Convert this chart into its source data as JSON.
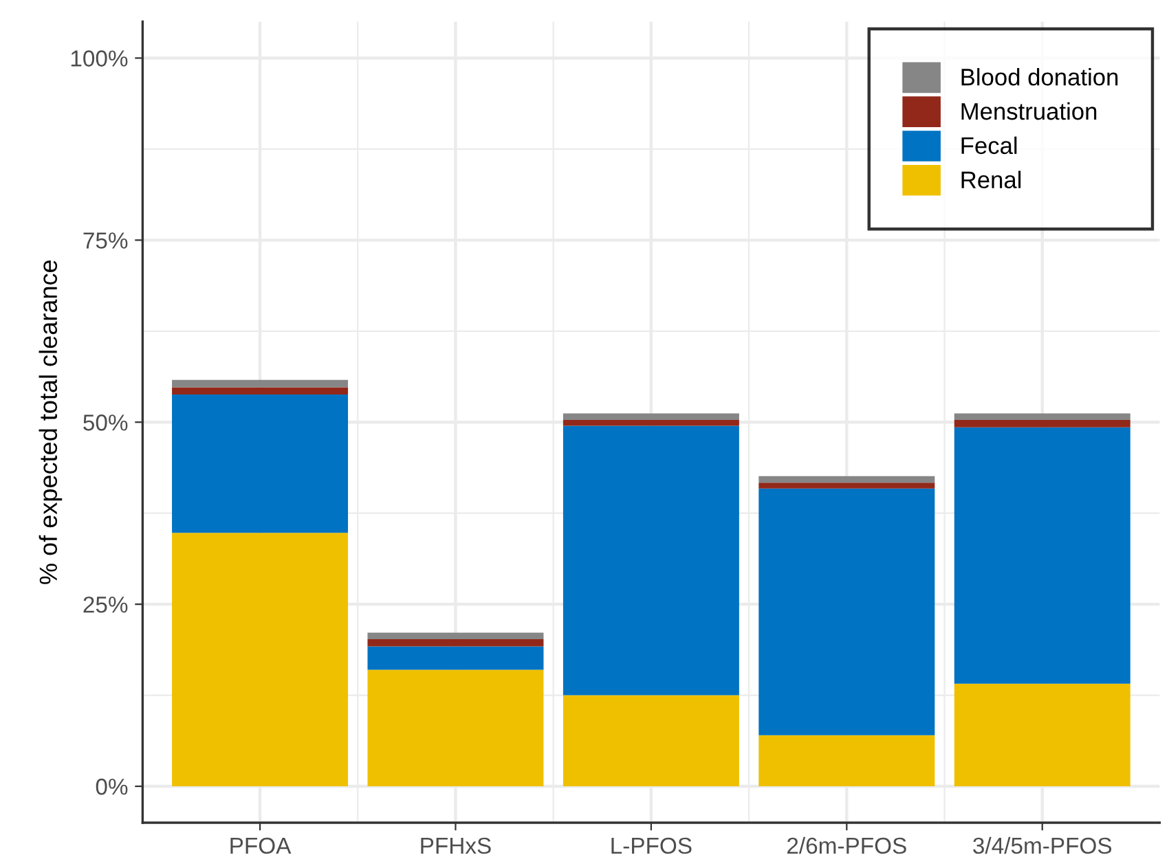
{
  "chart_data": {
    "type": "bar",
    "stacked": true,
    "ylabel": "% of expected total clearance",
    "categories": [
      "PFOA",
      "PFHxS",
      "L-PFOS",
      "2/6m-PFOS",
      "3/4/5m-PFOS"
    ],
    "series": [
      {
        "name": "Renal",
        "color": "#efc000",
        "values": [
          34.8,
          16.0,
          12.5,
          7.0,
          14.1
        ]
      },
      {
        "name": "Fecal",
        "color": "#0073c2",
        "values": [
          19.0,
          3.2,
          37.0,
          33.9,
          35.2
        ]
      },
      {
        "name": "Menstruation",
        "color": "#92281a",
        "values": [
          1.0,
          1.0,
          0.8,
          0.8,
          1.0
        ]
      },
      {
        "name": "Blood donation",
        "color": "#868686",
        "values": [
          1.0,
          0.9,
          0.9,
          0.9,
          0.9
        ]
      }
    ],
    "ylim": [
      -5,
      105
    ],
    "yticks": [
      {
        "value": 0,
        "label": "0%"
      },
      {
        "value": 25,
        "label": "25%"
      },
      {
        "value": 50,
        "label": "50%"
      },
      {
        "value": 75,
        "label": "75%"
      },
      {
        "value": 100,
        "label": "100%"
      }
    ],
    "grid": true,
    "legend": "top right"
  }
}
